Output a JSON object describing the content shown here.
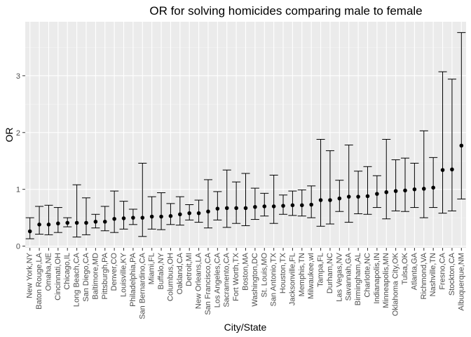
{
  "chart_data": {
    "type": "scatter",
    "title": "OR for solving homicides comparing male to female",
    "xlabel": "City/State",
    "ylabel": "OR",
    "ylim": [
      -0.03,
      3.95
    ],
    "yticks": [
      0,
      1,
      2,
      3
    ],
    "grid": true,
    "error_bars": true,
    "points": [
      {
        "city": "New York,NY",
        "or": 0.26,
        "lo": 0.13,
        "hi": 0.5
      },
      {
        "city": "Baton Rouge,LA",
        "or": 0.38,
        "lo": 0.21,
        "hi": 0.7
      },
      {
        "city": "Omaha,NE",
        "or": 0.38,
        "lo": 0.2,
        "hi": 0.72
      },
      {
        "city": "Cincinnati,OH",
        "or": 0.4,
        "lo": 0.24,
        "hi": 0.68
      },
      {
        "city": "Chicago,IL",
        "or": 0.41,
        "lo": 0.34,
        "hi": 0.5
      },
      {
        "city": "Long Beach,CA",
        "or": 0.41,
        "lo": 0.16,
        "hi": 1.08
      },
      {
        "city": "San Diego,CA",
        "or": 0.41,
        "lo": 0.2,
        "hi": 0.85
      },
      {
        "city": "Baltimore,MD",
        "or": 0.43,
        "lo": 0.32,
        "hi": 0.56
      },
      {
        "city": "Pittsburgh,PA",
        "or": 0.43,
        "lo": 0.27,
        "hi": 0.7
      },
      {
        "city": "Denver,CO",
        "or": 0.48,
        "lo": 0.24,
        "hi": 0.97
      },
      {
        "city": "Louisville,KY",
        "or": 0.49,
        "lo": 0.3,
        "hi": 0.79
      },
      {
        "city": "Philadelphia,PA",
        "or": 0.5,
        "lo": 0.38,
        "hi": 0.65
      },
      {
        "city": "San Bernardino,CA",
        "or": 0.5,
        "lo": 0.17,
        "hi": 1.46
      },
      {
        "city": "Miami,FL",
        "or": 0.52,
        "lo": 0.3,
        "hi": 0.87
      },
      {
        "city": "Buffalo,NY",
        "or": 0.52,
        "lo": 0.29,
        "hi": 0.94
      },
      {
        "city": "Columbus,OH",
        "or": 0.53,
        "lo": 0.38,
        "hi": 0.75
      },
      {
        "city": "Oakland,CA",
        "or": 0.56,
        "lo": 0.37,
        "hi": 0.87
      },
      {
        "city": "Detroit,MI",
        "or": 0.58,
        "lo": 0.46,
        "hi": 0.73
      },
      {
        "city": "New Orleans,LA",
        "or": 0.58,
        "lo": 0.42,
        "hi": 0.81
      },
      {
        "city": "San Francisco,CA",
        "or": 0.61,
        "lo": 0.32,
        "hi": 1.17
      },
      {
        "city": "Los Angeles,CA",
        "or": 0.66,
        "lo": 0.46,
        "hi": 0.96
      },
      {
        "city": "Sacramento,CA",
        "or": 0.67,
        "lo": 0.33,
        "hi": 1.34
      },
      {
        "city": "Fort Worth,TX",
        "or": 0.67,
        "lo": 0.4,
        "hi": 1.13
      },
      {
        "city": "Boston,MA",
        "or": 0.67,
        "lo": 0.36,
        "hi": 1.28
      },
      {
        "city": "Washington,DC",
        "or": 0.69,
        "lo": 0.47,
        "hi": 1.02
      },
      {
        "city": "St. Louis,MO",
        "or": 0.7,
        "lo": 0.53,
        "hi": 0.93
      },
      {
        "city": "San Antonio,TX",
        "or": 0.7,
        "lo": 0.4,
        "hi": 1.25
      },
      {
        "city": "Houston,TX",
        "or": 0.71,
        "lo": 0.56,
        "hi": 0.9
      },
      {
        "city": "Jacksonville,FL",
        "or": 0.72,
        "lo": 0.54,
        "hi": 0.97
      },
      {
        "city": "Memphis,TN",
        "or": 0.72,
        "lo": 0.53,
        "hi": 0.99
      },
      {
        "city": "Milwaukee,wI",
        "or": 0.73,
        "lo": 0.5,
        "hi": 1.06
      },
      {
        "city": "Tampa,FL",
        "or": 0.81,
        "lo": 0.35,
        "hi": 1.88
      },
      {
        "city": "Durham,NC",
        "or": 0.81,
        "lo": 0.39,
        "hi": 1.68
      },
      {
        "city": "Las Vegas,NV",
        "or": 0.84,
        "lo": 0.61,
        "hi": 1.16
      },
      {
        "city": "Savannah,GA",
        "or": 0.87,
        "lo": 0.42,
        "hi": 1.78
      },
      {
        "city": "Birmingham,AL",
        "or": 0.87,
        "lo": 0.57,
        "hi": 1.32
      },
      {
        "city": "Charlotte,NC",
        "or": 0.88,
        "lo": 0.56,
        "hi": 1.4
      },
      {
        "city": "Indianapolis,IN",
        "or": 0.92,
        "lo": 0.68,
        "hi": 1.24
      },
      {
        "city": "Minneapolis,MN",
        "or": 0.95,
        "lo": 0.48,
        "hi": 1.88
      },
      {
        "city": "Oklahoma City,OK",
        "or": 0.97,
        "lo": 0.62,
        "hi": 1.52
      },
      {
        "city": "Tulsa,OK",
        "or": 0.98,
        "lo": 0.61,
        "hi": 1.55
      },
      {
        "city": "Atlanta,GA",
        "or": 1.0,
        "lo": 0.68,
        "hi": 1.46
      },
      {
        "city": "Richmond,VA",
        "or": 1.01,
        "lo": 0.5,
        "hi": 2.03
      },
      {
        "city": "Nashville,TN",
        "or": 1.03,
        "lo": 0.68,
        "hi": 1.56
      },
      {
        "city": "Fresno,CA",
        "or": 1.34,
        "lo": 0.58,
        "hi": 3.07
      },
      {
        "city": "Stockton,CA",
        "or": 1.35,
        "lo": 0.62,
        "hi": 2.94
      },
      {
        "city": "Albuquerque,NM",
        "or": 1.77,
        "lo": 0.83,
        "hi": 3.76
      }
    ]
  }
}
